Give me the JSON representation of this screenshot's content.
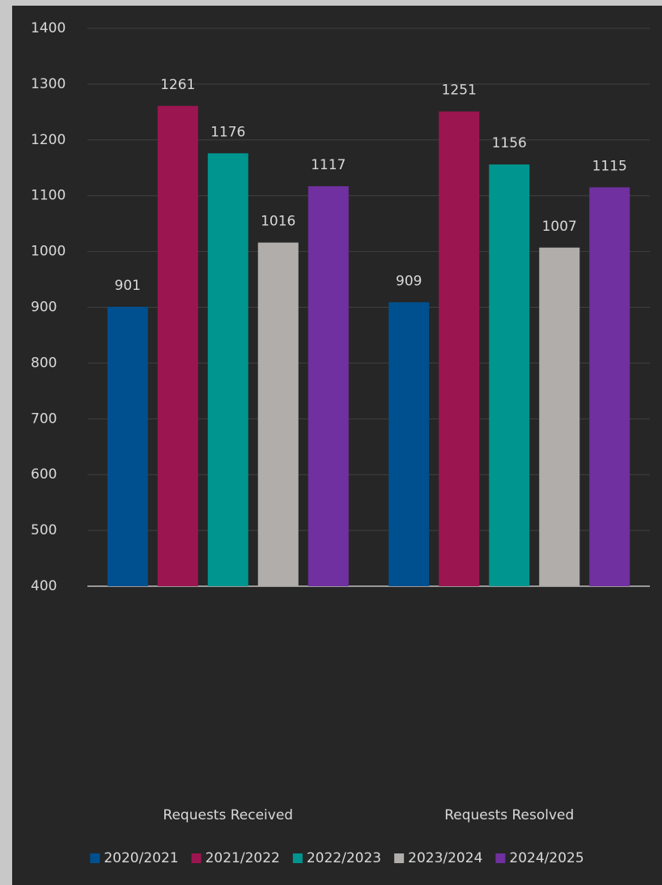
{
  "chart_data": {
    "type": "bar",
    "categories": [
      "Requests Received",
      "Requests Resolved"
    ],
    "series": [
      {
        "name": "2020/2021",
        "color": "#00508f",
        "values": [
          901,
          909
        ]
      },
      {
        "name": "2021/2022",
        "color": "#9b1550",
        "values": [
          1261,
          1251
        ]
      },
      {
        "name": "2022/2023",
        "color": "#00958f",
        "values": [
          1176,
          1156
        ]
      },
      {
        "name": "2023/2024",
        "color": "#b0adab",
        "values": [
          1016,
          1007
        ]
      },
      {
        "name": "2024/2025",
        "color": "#7030a0",
        "values": [
          1117,
          1115
        ]
      }
    ],
    "ylim": [
      400,
      1400
    ],
    "yticks": [
      400,
      500,
      600,
      700,
      800,
      900,
      1000,
      1100,
      1200,
      1300,
      1400
    ],
    "grid": true,
    "legend": "bottom"
  }
}
